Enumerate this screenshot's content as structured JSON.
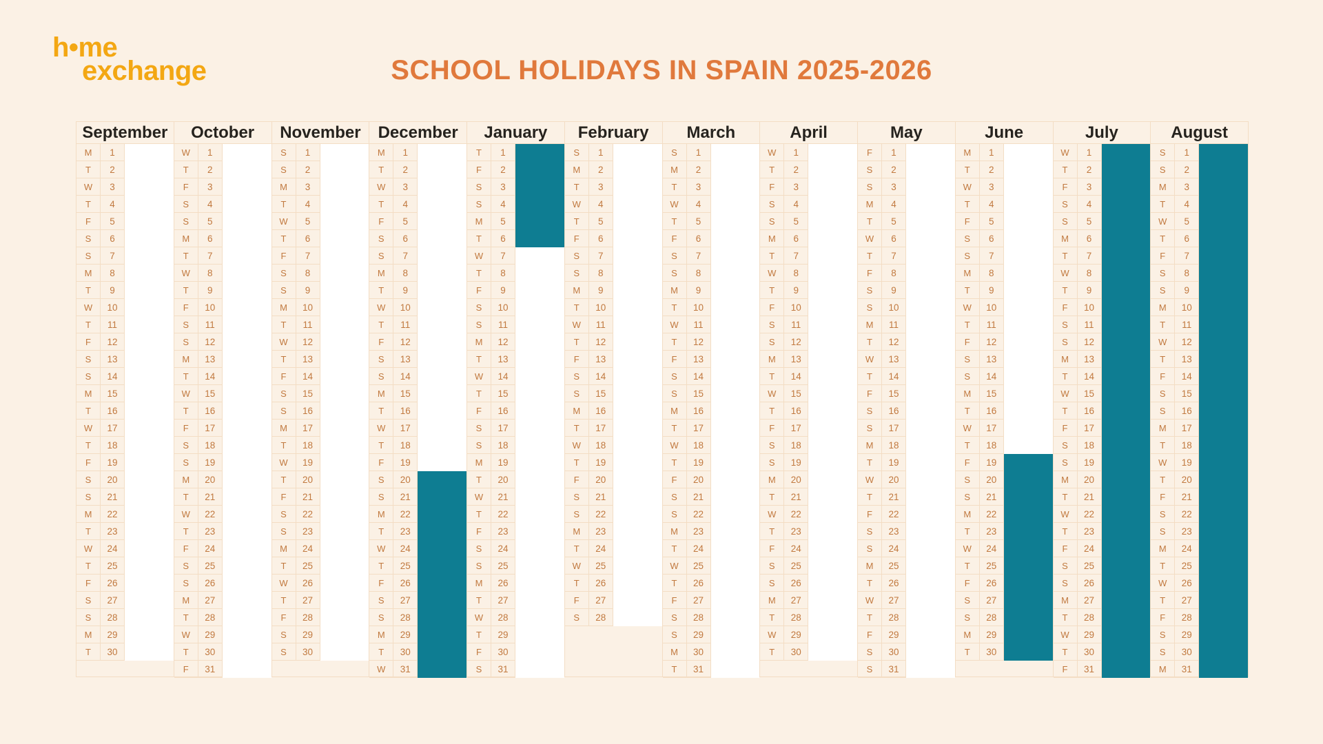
{
  "logo": {
    "line1": "h•me",
    "line2": "exchange",
    "color": "#F3A713"
  },
  "title": {
    "text": "SCHOOL HOLIDAYS IN SPAIN 2025-2026",
    "color": "#E0793C"
  },
  "calendar": {
    "weekday_letters": [
      "M",
      "T",
      "W",
      "T",
      "F",
      "S",
      "S"
    ],
    "colors": {
      "background": "#FBF1E5",
      "cell_border": "#F3DDC4",
      "day_text": "#C1793F",
      "month_text": "#26231E",
      "school_day": "#FFFFFF",
      "holiday": "#0E7D92"
    },
    "max_rows": 31,
    "months": [
      {
        "name": "September",
        "days": 30,
        "weekdays": "MTWTFSSMTWTFSSMTWTFSSMTWTFSSMT",
        "holidays": []
      },
      {
        "name": "October",
        "days": 31,
        "weekdays": "WTFSSMTWTFSSMTWTFSSMTWTFSSMTWTF",
        "holidays": []
      },
      {
        "name": "November",
        "days": 30,
        "weekdays": "SSMTWTFSSMTWTFSSMTWTFSSMTWTFSS",
        "holidays": []
      },
      {
        "name": "December",
        "days": 31,
        "weekdays": "MTWTFSSMTWTFSSMTWTFSSMTWTFSSMTW",
        "holidays": [
          {
            "from": 20,
            "to": 31
          }
        ]
      },
      {
        "name": "January",
        "days": 31,
        "weekdays": "TFSSMTWTFSSMTWTFSSMTWTFSSMTWTFS",
        "holidays": [
          {
            "from": 1,
            "to": 6
          }
        ]
      },
      {
        "name": "February",
        "days": 28,
        "weekdays": "SMTWTFSSMTWTFSSMTWTFSSMTWTFS",
        "holidays": []
      },
      {
        "name": "March",
        "days": 31,
        "weekdays": "SMTWTFSSMTWTFSSMTWTFSSMTWTFSSMT",
        "holidays": []
      },
      {
        "name": "April",
        "days": 30,
        "weekdays": "WTFSSMTWTFSSMTWTFSSMTWTFSSMTWT",
        "holidays": []
      },
      {
        "name": "May",
        "days": 31,
        "weekdays": "FSSMTWTFSSMTWTFSSMTWTFSSMTWTFSS",
        "holidays": []
      },
      {
        "name": "June",
        "days": 30,
        "weekdays": "MTWTFSSMTWTFSSMTWTFSSMTWTFSSMT",
        "holidays": [
          {
            "from": 19,
            "to": 30
          }
        ]
      },
      {
        "name": "July",
        "days": 31,
        "weekdays": "WTFSSMTWTFSSMTWTFSSMTWTFSSMTWTF",
        "holidays": [
          {
            "from": 1,
            "to": 31
          }
        ]
      },
      {
        "name": "August",
        "days": 31,
        "weekdays": "SSMTWTFSSMTWTFSSMTWTFSSMTWTFSSM",
        "holidays": [
          {
            "from": 1,
            "to": 31
          }
        ]
      }
    ]
  }
}
